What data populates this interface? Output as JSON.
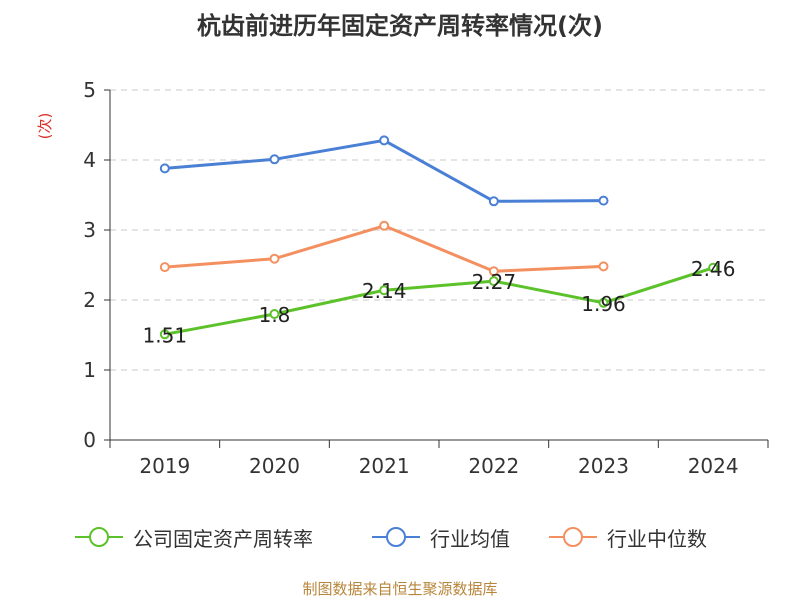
{
  "chart_data": {
    "type": "line",
    "title": "杭齿前进历年固定资产周转率情况(次)",
    "ylabel": "(次)",
    "xlabel": "",
    "categories": [
      "2019",
      "2020",
      "2021",
      "2022",
      "2023",
      "2024"
    ],
    "ylim": [
      0,
      5
    ],
    "yticks": [
      "0",
      "1",
      "2",
      "3",
      "4",
      "5"
    ],
    "grid": true,
    "legend_position": "bottom",
    "series": [
      {
        "name": "公司固定资产周转率",
        "color": "#5cc22a",
        "values": [
          1.51,
          1.8,
          2.14,
          2.27,
          1.96,
          2.46
        ],
        "labels": [
          "1.51",
          "1.8",
          "2.14",
          "2.27",
          "1.96",
          "2.46"
        ]
      },
      {
        "name": "行业均值",
        "color": "#4a7fd6",
        "values": [
          3.88,
          4.01,
          4.28,
          3.41,
          3.42,
          null
        ]
      },
      {
        "name": "行业中位数",
        "color": "#f49060",
        "values": [
          2.47,
          2.59,
          3.06,
          2.41,
          2.48,
          null
        ]
      }
    ]
  },
  "source": "制图数据来自恒生聚源数据库"
}
